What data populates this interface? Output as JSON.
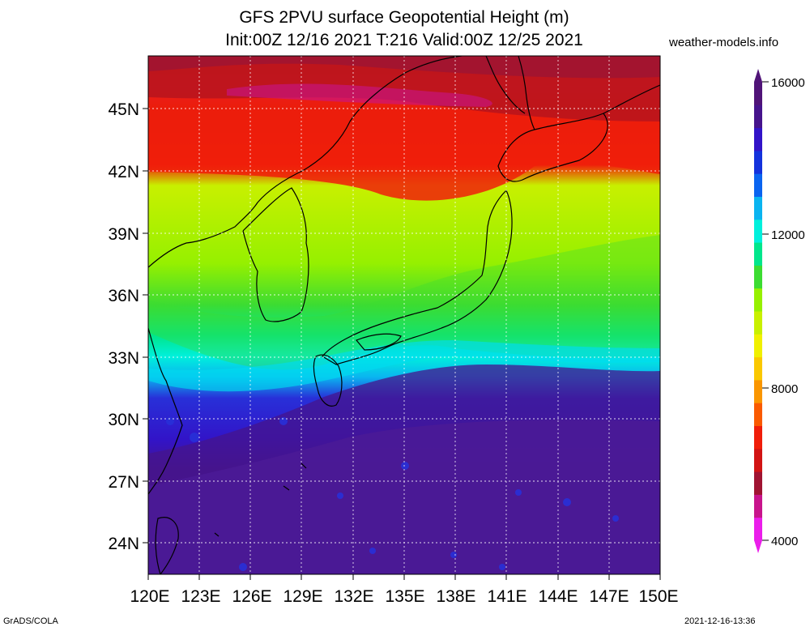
{
  "title_line1": "GFS 2PVU surface Geopotential Height (m)",
  "title_line2": "Init:00Z 12/16 2021 T:216 Valid:00Z 12/25 2021",
  "site": "weather-models.info",
  "footer_left": "GrADS/COLA",
  "footer_right": "2021-12-16-13:36",
  "lat_labels": [
    "45N",
    "42N",
    "39N",
    "36N",
    "33N",
    "30N",
    "27N",
    "24N"
  ],
  "lon_labels": [
    "120E",
    "123E",
    "126E",
    "129E",
    "132E",
    "135E",
    "138E",
    "141E",
    "144E",
    "147E",
    "150E"
  ],
  "colorbar": {
    "labels": [
      "16000",
      "12000",
      "8000",
      "4000"
    ],
    "colors": [
      "#eb1eeb",
      "#c8148c",
      "#a01432",
      "#d21414",
      "#f01e0a",
      "#fa5a00",
      "#fa9600",
      "#fac800",
      "#f0f000",
      "#c8f000",
      "#96f000",
      "#3cdc32",
      "#00e68c",
      "#00f0dc",
      "#0ab4f0",
      "#0a64f0",
      "#1432dc",
      "#3214c8",
      "#46148c",
      "#501478"
    ]
  },
  "colors": {
    "deep_purple": "#4b1a96",
    "blue": "#2830d8",
    "cyan": "#00dcf0",
    "green": "#3cdc32",
    "yellow_green": "#c8f000",
    "red": "#f01e0a",
    "dark_red": "#b4141e",
    "magenta": "#c8148c"
  }
}
